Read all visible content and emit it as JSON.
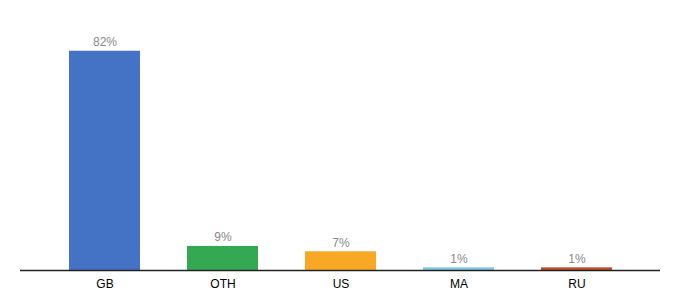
{
  "chart_data": {
    "type": "bar",
    "categories": [
      "GB",
      "OTH",
      "US",
      "MA",
      "RU"
    ],
    "values": [
      82,
      9,
      7,
      1,
      1
    ],
    "value_labels": [
      "82%",
      "9%",
      "7%",
      "1%",
      "1%"
    ],
    "colors": [
      "#4472c4",
      "#34a853",
      "#f9a825",
      "#7ec8e3",
      "#c0522a"
    ],
    "ylim": [
      0,
      92
    ],
    "data_labels": true,
    "tick_labels": "x"
  }
}
